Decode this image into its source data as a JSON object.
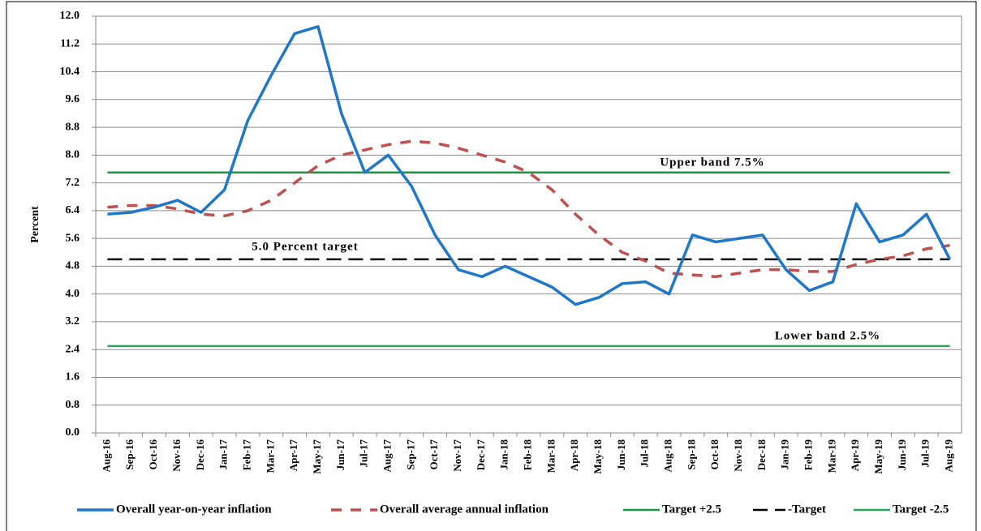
{
  "chart_data": {
    "type": "line",
    "y_label": "Percent",
    "categories": [
      "Aug-16",
      "Sep-16",
      "Oct-16",
      "Nov-16",
      "Dec-16",
      "Jan-17",
      "Feb-17",
      "Mar-17",
      "Apr-17",
      "May-17",
      "Jun-17",
      "Jul-17",
      "Aug-17",
      "Sep-17",
      "Oct-17",
      "Nov-17",
      "Dec-17",
      "Jan-18",
      "Feb-18",
      "Mar-18",
      "Apr-18",
      "May-18",
      "Jun-18",
      "Jul-18",
      "Aug-18",
      "Sep-18",
      "Oct-18",
      "Nov-18",
      "Dec-18",
      "Jan-19",
      "Feb-19",
      "Mar-19",
      "Apr-19",
      "May-19",
      "Jun-19",
      "Jul-19",
      "Aug-19"
    ],
    "series": [
      {
        "name": "Overall year-on-year inflation",
        "color": "#1f77c9",
        "dash": "solid",
        "values": [
          6.3,
          6.35,
          6.5,
          6.7,
          6.35,
          7.0,
          9.0,
          10.3,
          11.5,
          11.7,
          9.2,
          7.5,
          8.0,
          7.1,
          5.7,
          4.7,
          4.5,
          4.8,
          4.5,
          4.2,
          3.7,
          3.9,
          4.3,
          4.35,
          4.0,
          5.7,
          5.5,
          5.6,
          5.7,
          4.7,
          4.1,
          4.35,
          6.6,
          5.5,
          5.7,
          6.3,
          5.0
        ]
      },
      {
        "name": "Overall average annual inflation",
        "color": "#c0504d",
        "dash": "dashed",
        "values": [
          6.5,
          6.55,
          6.55,
          6.45,
          6.3,
          6.25,
          6.4,
          6.7,
          7.2,
          7.7,
          8.0,
          8.15,
          8.3,
          8.4,
          8.35,
          8.2,
          8.0,
          7.8,
          7.5,
          7.0,
          6.3,
          5.7,
          5.2,
          4.95,
          4.6,
          4.55,
          4.5,
          4.6,
          4.7,
          4.7,
          4.65,
          4.65,
          4.85,
          5.0,
          5.1,
          5.3,
          5.4
        ]
      },
      {
        "name": "Target +2.5",
        "color": "#1a9641",
        "dash": "solid",
        "values": [
          7.5,
          7.5,
          7.5,
          7.5,
          7.5,
          7.5,
          7.5,
          7.5,
          7.5,
          7.5,
          7.5,
          7.5,
          7.5,
          7.5,
          7.5,
          7.5,
          7.5,
          7.5,
          7.5,
          7.5,
          7.5,
          7.5,
          7.5,
          7.5,
          7.5,
          7.5,
          7.5,
          7.5,
          7.5,
          7.5,
          7.5,
          7.5,
          7.5,
          7.5,
          7.5,
          7.5,
          7.5
        ]
      },
      {
        "name": "-Target",
        "color": "#000000",
        "dash": "longdash",
        "values": [
          5.0,
          5.0,
          5.0,
          5.0,
          5.0,
          5.0,
          5.0,
          5.0,
          5.0,
          5.0,
          5.0,
          5.0,
          5.0,
          5.0,
          5.0,
          5.0,
          5.0,
          5.0,
          5.0,
          5.0,
          5.0,
          5.0,
          5.0,
          5.0,
          5.0,
          5.0,
          5.0,
          5.0,
          5.0,
          5.0,
          5.0,
          5.0,
          5.0,
          5.0,
          5.0,
          5.0,
          5.0
        ]
      },
      {
        "name": "Target -2.5",
        "color": "#2ca25f",
        "dash": "solid",
        "values": [
          2.5,
          2.5,
          2.5,
          2.5,
          2.5,
          2.5,
          2.5,
          2.5,
          2.5,
          2.5,
          2.5,
          2.5,
          2.5,
          2.5,
          2.5,
          2.5,
          2.5,
          2.5,
          2.5,
          2.5,
          2.5,
          2.5,
          2.5,
          2.5,
          2.5,
          2.5,
          2.5,
          2.5,
          2.5,
          2.5,
          2.5,
          2.5,
          2.5,
          2.5,
          2.5,
          2.5,
          2.5
        ]
      }
    ],
    "annotations": [
      "Upper band 7.5%",
      "5.0 Percent target",
      "Lower band 2.5%"
    ],
    "ylim": [
      0,
      12
    ],
    "yticks": [
      {
        "value": 0,
        "label": "0.0"
      },
      0.8,
      1.6,
      2.4,
      3.2,
      {
        "value": 4,
        "label": "4.0"
      },
      4.8,
      5.6,
      6.4,
      7.2,
      {
        "value": 8,
        "label": "8.0"
      },
      8.8,
      9.6,
      10.4,
      11.2,
      {
        "value": 12,
        "label": "12.0"
      }
    ],
    "grid": true,
    "legend": "bottom"
  }
}
